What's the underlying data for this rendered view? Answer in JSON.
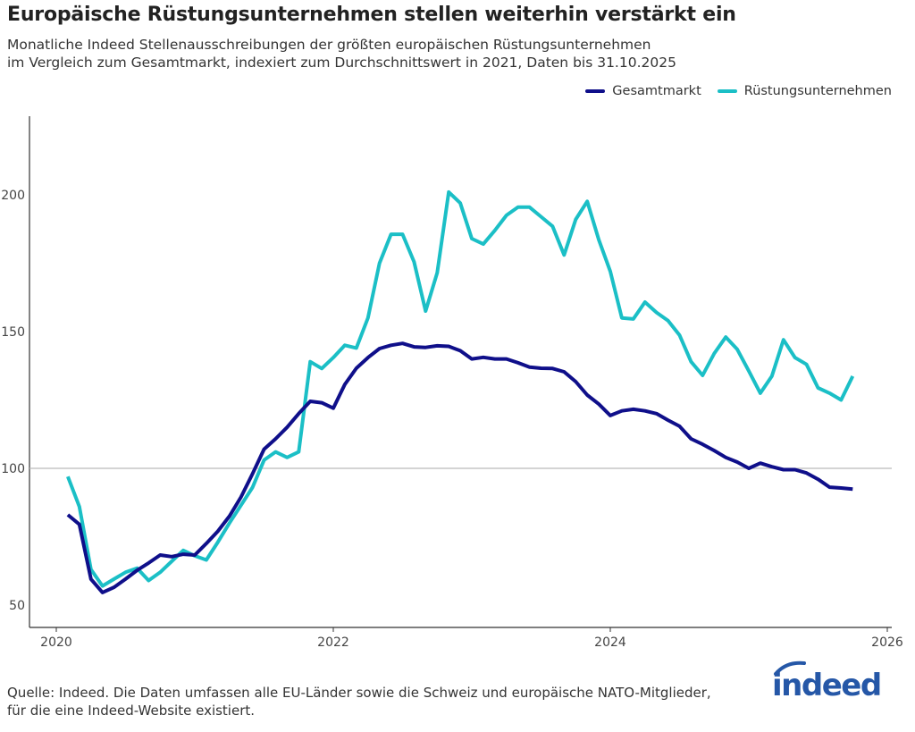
{
  "title": "Europäische Rüstungsunternehmen stellen weiterhin verstärkt ein",
  "subtitle": [
    "Monatliche Indeed Stellenausschreibungen der größten europäischen Rüstungsunternehmen",
    "im Vergleich zum Gesamtmarkt, indexiert zum Durchschnittswert in 2021, Daten bis 31.10.2025"
  ],
  "footer": [
    "Quelle: Indeed. Die Daten umfassen alle EU-Länder sowie die Schweiz und europäische NATO-Mitglieder,",
    "für die eine Indeed-Website existiert."
  ],
  "logo_text": "indeed",
  "colors": {
    "gesamtmarkt": "#0f0f8a",
    "ruestung": "#1bbfc6",
    "reference_line": "#bbbbbb",
    "logo": "#2557a7"
  },
  "chart_data": {
    "type": "line",
    "title": "Europäische Rüstungsunternehmen stellen weiterhin verstärkt ein",
    "xlabel": "",
    "ylabel": "",
    "xlim": [
      "2019-11",
      "2026-01"
    ],
    "ylim": [
      41,
      228
    ],
    "x_ticks": [
      "2020",
      "2022",
      "2024",
      "2026"
    ],
    "y_ticks": [
      50,
      100,
      150,
      200
    ],
    "reference_line": 100,
    "grid": false,
    "legend_position": "top-right",
    "x": [
      "2020-02",
      "2020-03",
      "2020-04",
      "2020-05",
      "2020-06",
      "2020-07",
      "2020-08",
      "2020-09",
      "2020-10",
      "2020-11",
      "2020-12",
      "2021-01",
      "2021-02",
      "2021-03",
      "2021-04",
      "2021-05",
      "2021-06",
      "2021-07",
      "2021-08",
      "2021-09",
      "2021-10",
      "2021-11",
      "2021-12",
      "2022-01",
      "2022-02",
      "2022-03",
      "2022-04",
      "2022-05",
      "2022-06",
      "2022-07",
      "2022-08",
      "2022-09",
      "2022-10",
      "2022-11",
      "2022-12",
      "2023-01",
      "2023-02",
      "2023-03",
      "2023-04",
      "2023-05",
      "2023-06",
      "2023-07",
      "2023-08",
      "2023-09",
      "2023-10",
      "2023-11",
      "2023-12",
      "2024-01",
      "2024-02",
      "2024-03",
      "2024-04",
      "2024-05",
      "2024-06",
      "2024-07",
      "2024-08",
      "2024-09",
      "2024-10",
      "2024-11",
      "2024-12",
      "2025-01",
      "2025-02",
      "2025-03",
      "2025-04",
      "2025-05",
      "2025-06",
      "2025-07",
      "2025-08",
      "2025-09",
      "2025-10"
    ],
    "series": [
      {
        "name": "Gesamtmarkt",
        "values": [
          83,
          79.5,
          59.5,
          54.6,
          56.5,
          59.5,
          62.7,
          65.4,
          68.3,
          67.7,
          68.6,
          68.3,
          72.5,
          77,
          82.5,
          89.5,
          98,
          107,
          110.8,
          115,
          120,
          124.5,
          124,
          122,
          130.7,
          136.6,
          140.5,
          143.8,
          145,
          145.7,
          144.4,
          144.2,
          144.8,
          144.6,
          143,
          140,
          140.6,
          140,
          140,
          138.6,
          137,
          136.6,
          136.5,
          135.3,
          131.7,
          126.8,
          123.5,
          119.3,
          121,
          121.6,
          121,
          120,
          117.6,
          115.4,
          110.8,
          108.8,
          106.5,
          104,
          102.3,
          100,
          101.9,
          100.6,
          99.5,
          99.5,
          98.3,
          96,
          93.1,
          92.8,
          92.4
        ]
      },
      {
        "name": "Rüstungsunternehmen",
        "values": [
          97,
          86,
          63,
          57,
          59.5,
          62,
          63.5,
          59,
          62,
          66,
          70,
          68,
          66.5,
          73,
          80,
          86.5,
          93,
          103,
          106,
          104,
          106,
          139,
          136.5,
          140.5,
          145,
          144,
          155,
          175,
          185.6,
          185.6,
          175.5,
          157.5,
          171.5,
          201,
          197,
          184,
          182,
          187,
          192.5,
          195.5,
          195.5,
          192,
          188.5,
          178,
          191,
          197.6,
          183.6,
          172,
          155,
          154.6,
          160.8,
          157,
          154,
          148.7,
          139,
          134,
          142,
          148,
          143.5,
          135.6,
          127.5,
          133.7,
          147,
          140.5,
          138,
          129.4,
          127.5,
          125,
          133.7
        ]
      }
    ]
  }
}
